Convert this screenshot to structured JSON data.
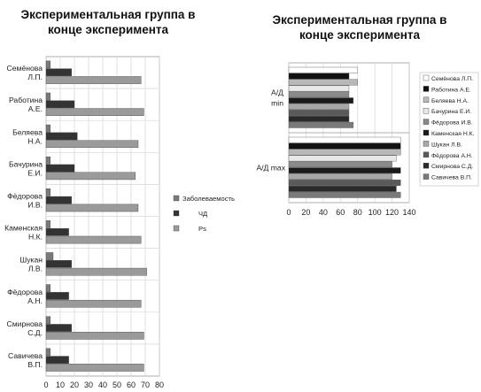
{
  "chart_data": [
    {
      "type": "bar",
      "orientation": "horizontal",
      "title": "Экспериментальная группа в конце эксперимента",
      "categories": [
        "Семёнова Л.П.",
        "Работина А.Е.",
        "Беляева Н.А.",
        "Бачурина Е.И.",
        "Фёдорова И.В.",
        "Каменская Н.К.",
        "Шукан Л.В.",
        "Фёдорова А.Н.",
        "Смирнова С.Д.",
        "Савичева В.П."
      ],
      "series": [
        {
          "name": "Заболеваемость",
          "color": "#7a7a7a",
          "values": [
            3,
            3,
            3,
            3,
            3,
            3,
            5,
            3,
            3,
            3
          ]
        },
        {
          "name": "ЧД",
          "color": "#333333",
          "values": [
            18,
            20,
            22,
            20,
            18,
            16,
            18,
            16,
            18,
            16
          ]
        },
        {
          "name": "Ps",
          "color": "#9a9a9a",
          "values": [
            67,
            69,
            65,
            63,
            65,
            67,
            71,
            67,
            69,
            69
          ]
        }
      ],
      "xlim": [
        0,
        80
      ],
      "xticks": [
        "0",
        "10",
        "20",
        "30",
        "40",
        "50",
        "60",
        "70",
        "80"
      ],
      "grid": true,
      "legend": "right"
    },
    {
      "type": "bar",
      "orientation": "horizontal",
      "title": "Экспериментальная группа в конце эксперимента",
      "categories": [
        "А/Д min",
        "А/Д max"
      ],
      "series": [
        {
          "name": "Семёнова Л.П.",
          "color": "#ffffff",
          "values": [
            80,
            130
          ]
        },
        {
          "name": "Работина А.Е.",
          "color": "#111111",
          "values": [
            70,
            130
          ]
        },
        {
          "name": "Беляева Н.А.",
          "color": "#b8b8b8",
          "values": [
            80,
            130
          ]
        },
        {
          "name": "Бачурина Е.И.",
          "color": "#e8e8e8",
          "values": [
            70,
            125
          ]
        },
        {
          "name": "Фёдорова И.В.",
          "color": "#8a8a8a",
          "values": [
            70,
            120
          ]
        },
        {
          "name": "Каменская Н.К.",
          "color": "#1a1a1a",
          "values": [
            75,
            130
          ]
        },
        {
          "name": "Шукан Л.В.",
          "color": "#a8a8a8",
          "values": [
            70,
            120
          ]
        },
        {
          "name": "Фёдорова А.Н.",
          "color": "#5a5a5a",
          "values": [
            70,
            130
          ]
        },
        {
          "name": "Смирнова С.Д.",
          "color": "#2a2a2a",
          "values": [
            70,
            125
          ]
        },
        {
          "name": "Савичева В.П.",
          "color": "#7a7a7a",
          "values": [
            75,
            130
          ]
        }
      ],
      "xlim": [
        0,
        140
      ],
      "xticks": [
        "0",
        "20",
        "40",
        "60",
        "80",
        "100",
        "120",
        "140"
      ],
      "grid": true,
      "legend": "right"
    }
  ]
}
